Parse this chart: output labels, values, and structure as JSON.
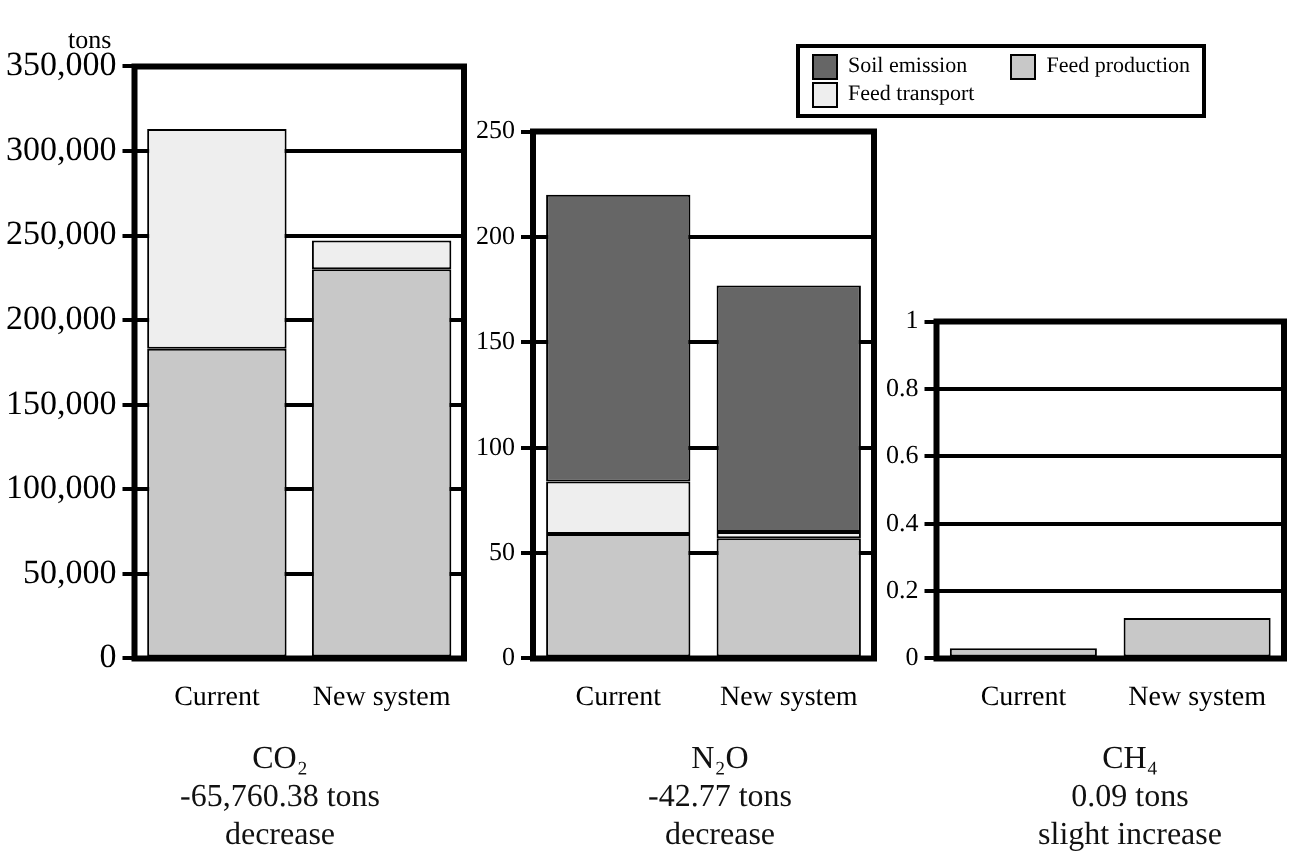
{
  "chart_data": [
    {
      "type": "bar",
      "title": "CO₂",
      "annotations": [
        "-65,760.38 tons",
        "decrease"
      ],
      "ylabel": "tons",
      "categories": [
        "Current",
        "New system"
      ],
      "stacked": true,
      "grid": "y",
      "legend": false,
      "series": [
        {
          "color": "#c8c8c8",
          "values": [
            183000,
            230000
          ]
        },
        {
          "color": "#eeeeee",
          "values": [
            130000,
            17000
          ]
        },
        {
          "color": "#666666",
          "values": [
            0,
            0
          ]
        }
      ],
      "ylim": [
        0,
        350000
      ],
      "yticks": [
        0,
        {
          "value": 50000,
          "label": "50,000"
        },
        {
          "value": 100000,
          "label": "100,000"
        },
        {
          "value": 150000,
          "label": "150,000"
        },
        {
          "value": 200000,
          "label": "200,000"
        },
        {
          "value": 250000,
          "label": "250,000"
        },
        {
          "value": 300000,
          "label": "300,000"
        },
        {
          "value": 350000,
          "label": "350,000"
        }
      ]
    },
    {
      "type": "bar",
      "title": "N₂O",
      "annotations": [
        "-42.77 tons",
        "decrease"
      ],
      "categories": [
        "Current",
        "New system"
      ],
      "stacked": true,
      "grid": "y",
      "legend": false,
      "series": [
        {
          "color": "#c8c8c8",
          "values": [
            59,
            57
          ]
        },
        {
          "color": "#eeeeee",
          "values": [
            25,
            3
          ]
        },
        {
          "color": "#666666",
          "values": [
            136,
            117
          ]
        }
      ],
      "ylim": [
        0,
        250
      ],
      "yticks": [
        0,
        50,
        100,
        150,
        200,
        250
      ]
    },
    {
      "type": "bar",
      "title": "CH₄",
      "annotations": [
        "0.09 tons",
        "slight increase"
      ],
      "categories": [
        "Current",
        "New system"
      ],
      "stacked": true,
      "grid": "y",
      "legend": "top",
      "series": [
        {
          "name": "Soil emission",
          "color": "#666666",
          "values": [
            0,
            0
          ]
        },
        {
          "name": "Feed production",
          "color": "#c8c8c8",
          "values": [
            0.03,
            0.12
          ]
        },
        {
          "name": "Feed transport",
          "color": "#eeeeee",
          "values": [
            0,
            0
          ]
        }
      ],
      "ylim": [
        0,
        1
      ],
      "yticks": [
        0,
        0.2,
        0.4,
        0.6,
        0.8,
        1
      ]
    }
  ]
}
